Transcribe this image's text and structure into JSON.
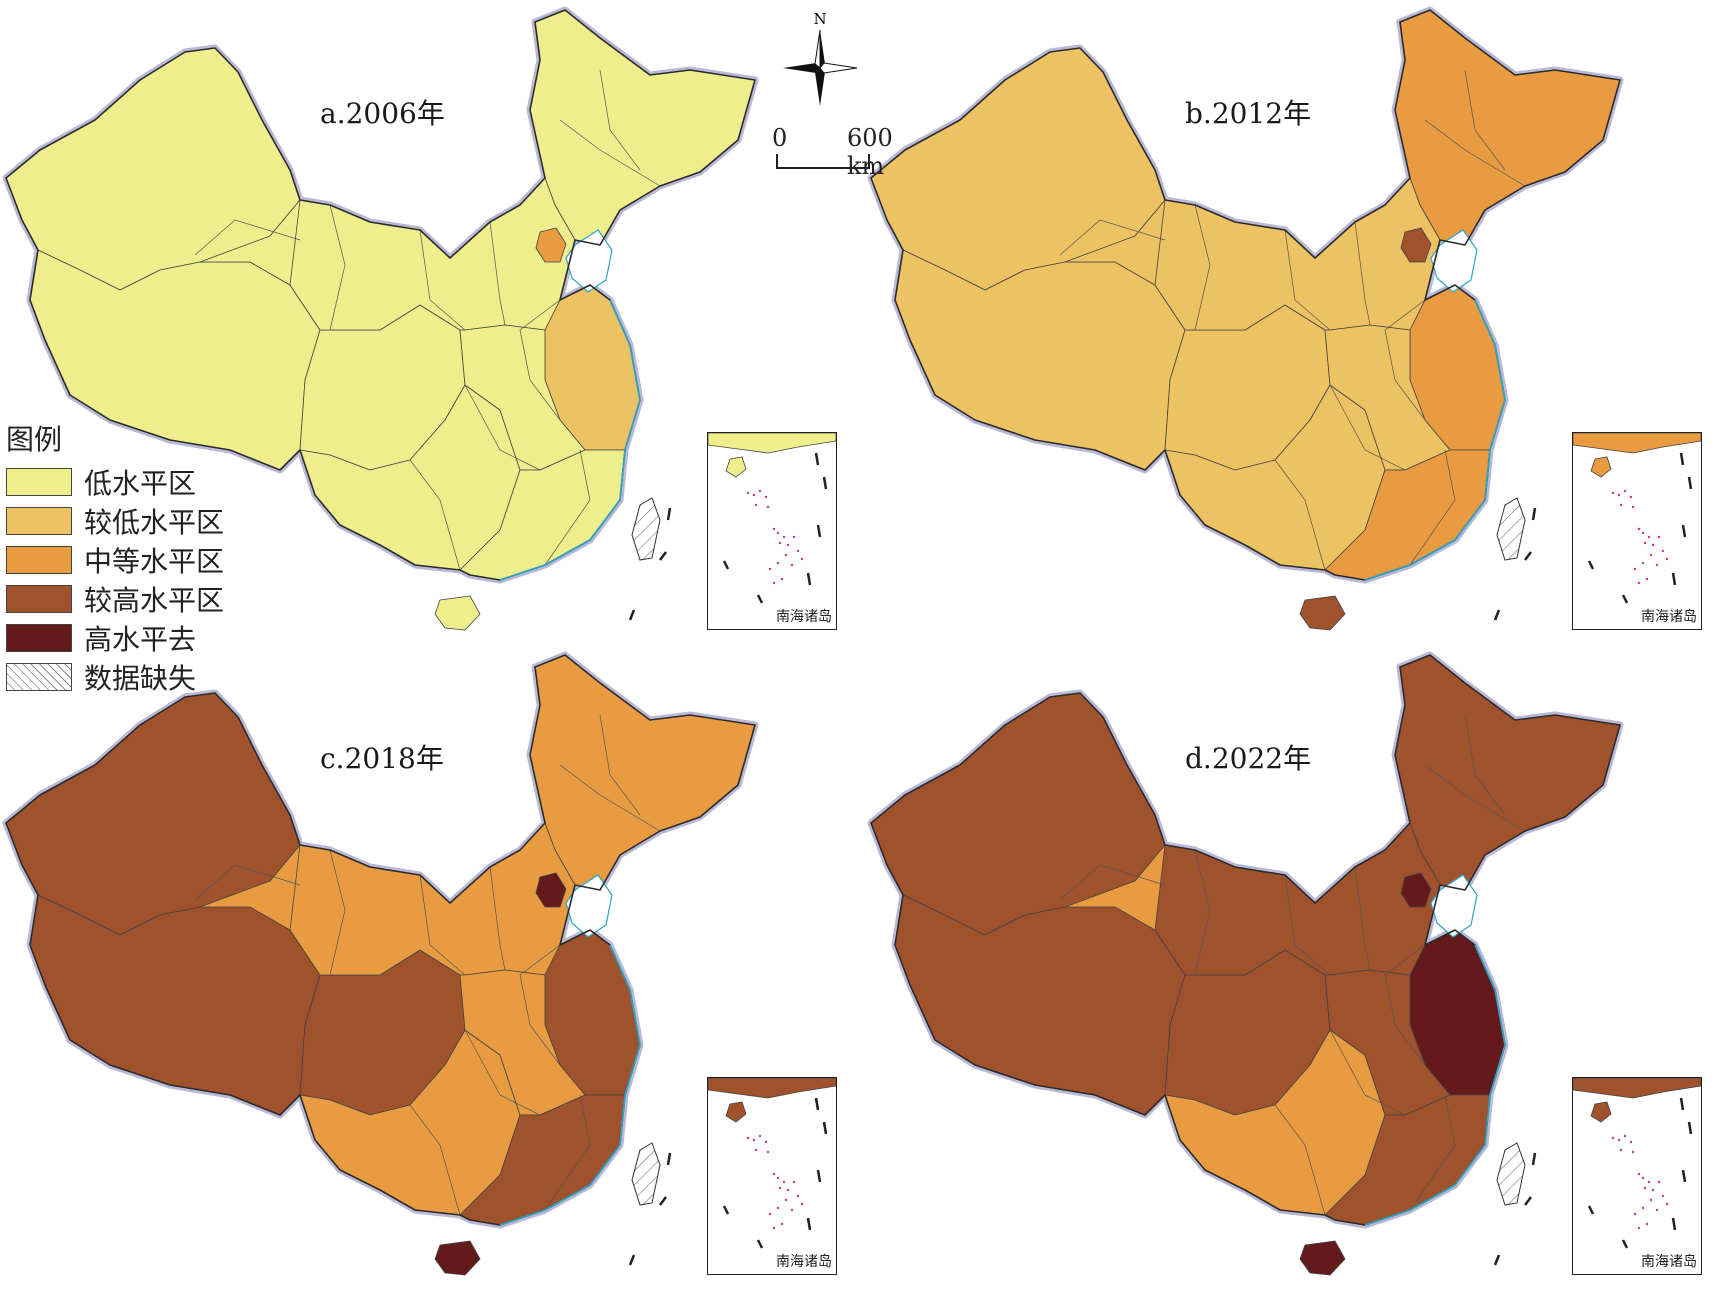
{
  "panels": [
    {
      "id": "a",
      "title": "a.2006年",
      "fills": [
        "#EEEE8C",
        "#EEEE8C",
        "#EEEE8C",
        "#EEEE8C",
        "#EEEE8C",
        "#EEEE8C",
        "#EEEE8C",
        "#E89B40",
        "#EDC263",
        "#EEEE8C",
        "#EEEE8C",
        "#EEEE8C"
      ]
    },
    {
      "id": "b",
      "title": "b.2012年",
      "fills": [
        "#EDC263",
        "#EDC263",
        "#E89B40",
        "#EDC263",
        "#EDC263",
        "#EDC263",
        "#EDC263",
        "#A0522D",
        "#E89B40",
        "#EDC263",
        "#E89B40",
        "#A0522D"
      ]
    },
    {
      "id": "c",
      "title": "c.2018年",
      "fills": [
        "#A0522D",
        "#A0522D",
        "#E89B40",
        "#E89B40",
        "#A0522D",
        "#E89B40",
        "#E89B40",
        "#641A1A",
        "#A0522D",
        "#E89B40",
        "#A0522D",
        "#641A1A"
      ]
    },
    {
      "id": "d",
      "title": "d.2022年",
      "fills": [
        "#A0522D",
        "#A0522D",
        "#A0522D",
        "#E89B40",
        "#A0522D",
        "#E89B40",
        "#A0522D",
        "#641A1A",
        "#641A1A",
        "#A0522D",
        "#A0522D",
        "#641A1A"
      ]
    }
  ],
  "legend": {
    "title": "图例",
    "items": [
      {
        "label": "低水平区",
        "color": "#EEEE8C"
      },
      {
        "label": "较低水平区",
        "color": "#EDC263"
      },
      {
        "label": "中等水平区",
        "color": "#E89B40"
      },
      {
        "label": "较高水平区",
        "color": "#A0522D"
      },
      {
        "label": "高水平去",
        "color": "#641A1A"
      },
      {
        "label": "数据缺失",
        "pattern": "hatch"
      }
    ]
  },
  "north_label": "N",
  "scale": {
    "zero": "0",
    "distance": "600 km"
  },
  "inset_label": "南海诸岛",
  "colors": {
    "border": "#2b2b2b",
    "coast": "#2aa6c8",
    "outline_glow": "#b9b9d6"
  }
}
